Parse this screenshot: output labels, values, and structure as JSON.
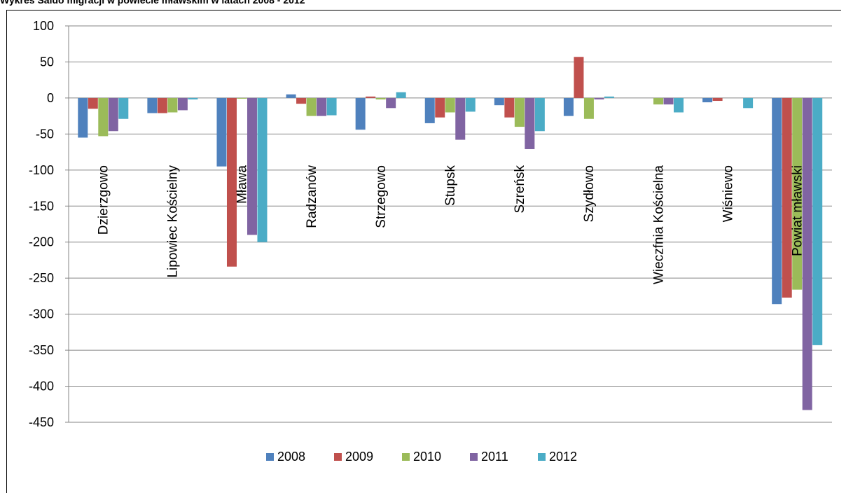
{
  "page_title": "Wykres Saldo migracji w powiecie mławskim w latach 2008 - 2012",
  "chart_data": {
    "type": "bar",
    "title": "",
    "xlabel": "",
    "ylabel": "",
    "categories": [
      "Dzierzgowo",
      "Lipowiec Kościelny",
      "Mława",
      "Radzanów",
      "Strzegowo",
      "Stupsk",
      "Szreńsk",
      "Szydłowo",
      "Wieczfnia Kościelna",
      "Wiśniewo",
      "Powiat mławski"
    ],
    "series": [
      {
        "name": "2008",
        "color": "#4F81BD",
        "values": [
          -55,
          -21,
          -95,
          5,
          -44,
          -35,
          -10,
          -25,
          0,
          -6,
          -286
        ]
      },
      {
        "name": "2009",
        "color": "#C0504D",
        "values": [
          -15,
          -21,
          -234,
          -8,
          2,
          -27,
          -27,
          57,
          0,
          -4,
          -277
        ]
      },
      {
        "name": "2010",
        "color": "#9BBB59",
        "values": [
          -53,
          -20,
          -1,
          -25,
          -2,
          -20,
          -40,
          -29,
          -9,
          0,
          -266
        ]
      },
      {
        "name": "2011",
        "color": "#8064A2",
        "values": [
          -46,
          -17,
          -190,
          -25,
          -14,
          -58,
          -71,
          -2,
          -9,
          0,
          -433
        ]
      },
      {
        "name": "2012",
        "color": "#4BACC6",
        "values": [
          -29,
          -2,
          -200,
          -24,
          8,
          -19,
          -46,
          2,
          -20,
          -14,
          -343
        ]
      }
    ],
    "ylim": [
      -450,
      100
    ],
    "yticks": [
      100,
      50,
      0,
      -50,
      -100,
      -150,
      -200,
      -250,
      -300,
      -350,
      -400,
      -450
    ],
    "grid": true,
    "legend": "bottom"
  }
}
